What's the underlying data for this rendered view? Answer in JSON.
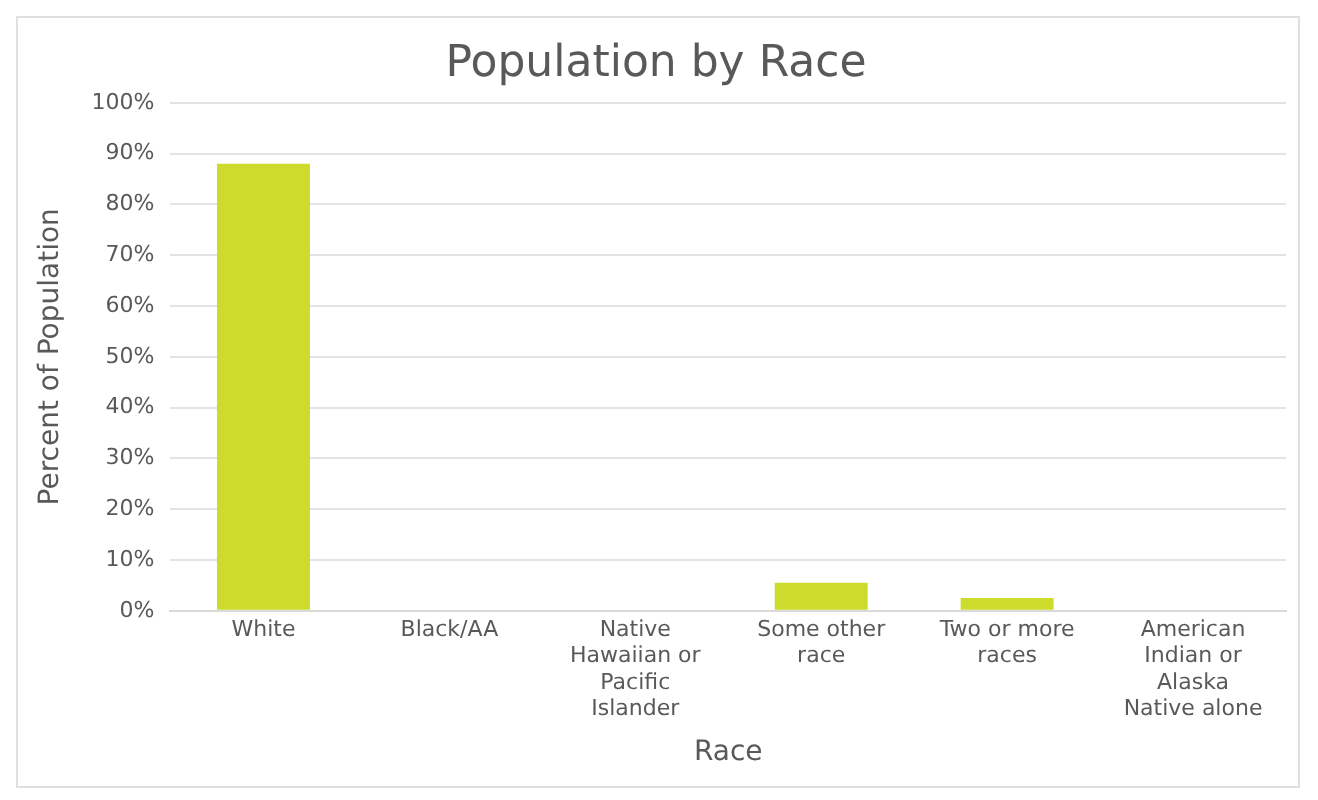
{
  "chart_data": {
    "type": "bar",
    "title": "Population by Race",
    "xlabel": "Race",
    "ylabel": "Percent of Population",
    "categories": [
      "White",
      "Black/AA",
      "Native Hawaiian or Pacific Islander",
      "Some other race",
      "Two or more races",
      "American Indian or Alaska Native alone"
    ],
    "values": [
      88,
      0,
      0,
      5.5,
      2.5,
      0
    ],
    "color": "#cddc2c",
    "ylim": [
      0,
      100
    ],
    "yticks": [
      {
        "value": 0,
        "label": "0%"
      },
      {
        "value": 10,
        "label": "10%"
      },
      {
        "value": 20,
        "label": "20%"
      },
      {
        "value": 30,
        "label": "30%"
      },
      {
        "value": 40,
        "label": "40%"
      },
      {
        "value": 50,
        "label": "50%"
      },
      {
        "value": 60,
        "label": "60%"
      },
      {
        "value": 70,
        "label": "70%"
      },
      {
        "value": 80,
        "label": "80%"
      },
      {
        "value": 90,
        "label": "90%"
      },
      {
        "value": 100,
        "label": "100%"
      }
    ],
    "grid": "y",
    "legend": false
  }
}
